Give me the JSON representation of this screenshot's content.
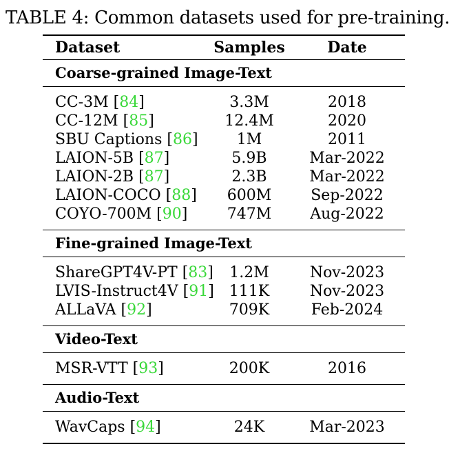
{
  "caption": "TABLE 4: Common datasets used for pre-training.",
  "header": {
    "dataset": "Dataset",
    "samples": "Samples",
    "date": "Date"
  },
  "groups": [
    {
      "title": "Coarse-grained Image-Text",
      "rows": [
        {
          "name": "CC-3M",
          "ref": "84",
          "samples": "3.3M",
          "date": "2018"
        },
        {
          "name": "CC-12M",
          "ref": "85",
          "samples": "12.4M",
          "date": "2020"
        },
        {
          "name": "SBU Captions",
          "ref": "86",
          "samples": "1M",
          "date": "2011"
        },
        {
          "name": "LAION-5B",
          "ref": "87",
          "samples": "5.9B",
          "date": "Mar-2022"
        },
        {
          "name": "LAION-2B",
          "ref": "87",
          "samples": "2.3B",
          "date": "Mar-2022"
        },
        {
          "name": "LAION-COCO",
          "ref": "88",
          "samples": "600M",
          "date": "Sep-2022"
        },
        {
          "name": "COYO-700M",
          "ref": "90",
          "samples": "747M",
          "date": "Aug-2022"
        }
      ]
    },
    {
      "title": "Fine-grained Image-Text",
      "rows": [
        {
          "name": "ShareGPT4V-PT",
          "ref": "83",
          "samples": "1.2M",
          "date": "Nov-2023"
        },
        {
          "name": "LVIS-Instruct4V",
          "ref": "91",
          "samples": "111K",
          "date": "Nov-2023"
        },
        {
          "name": "ALLaVA",
          "ref": "92",
          "samples": "709K",
          "date": "Feb-2024"
        }
      ]
    },
    {
      "title": "Video-Text",
      "rows": [
        {
          "name": "MSR-VTT",
          "ref": "93",
          "samples": "200K",
          "date": "2016"
        }
      ]
    },
    {
      "title": "Audio-Text",
      "rows": [
        {
          "name": "WavCaps",
          "ref": "94",
          "samples": "24K",
          "date": "Mar-2023"
        }
      ]
    }
  ],
  "colors": {
    "ref_link": "#39d839"
  }
}
